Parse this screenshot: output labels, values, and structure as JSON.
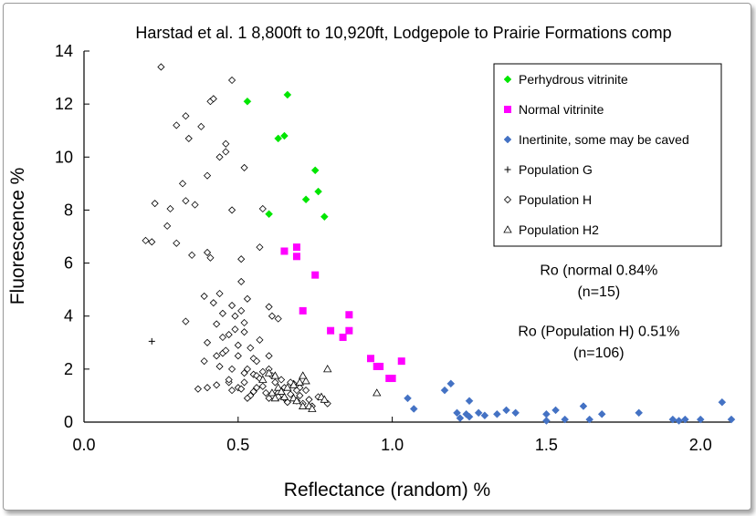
{
  "chart_data": {
    "type": "scatter",
    "title": "Harstad et al. 1 8,800ft to 10,920ft, Lodgepole to Prairie  Formations comp",
    "xlabel": "Reflectance (random) %",
    "ylabel": "Fluorescence %",
    "xlim": [
      0,
      2.1
    ],
    "ylim": [
      0,
      14
    ],
    "x_ticks": [
      "0.0",
      "0.5",
      "1.0",
      "1.5",
      "2.0"
    ],
    "x_tick_values": [
      0,
      0.5,
      1.0,
      1.5,
      2.0
    ],
    "y_ticks": [
      "0",
      "2",
      "4",
      "6",
      "8",
      "10",
      "12",
      "14"
    ],
    "y_tick_values": [
      0,
      2,
      4,
      6,
      8,
      10,
      12,
      14
    ],
    "grid": false,
    "legend_position": "top-right",
    "series": [
      {
        "name": "Perhydrous vitrinite",
        "marker": "diamond-filled",
        "color": "#00e600",
        "points": [
          [
            0.53,
            12.1
          ],
          [
            0.66,
            12.35
          ],
          [
            0.63,
            10.7
          ],
          [
            0.65,
            10.8
          ],
          [
            0.75,
            9.5
          ],
          [
            0.76,
            8.7
          ],
          [
            0.72,
            8.4
          ],
          [
            0.6,
            7.85
          ],
          [
            0.78,
            7.75
          ]
        ]
      },
      {
        "name": "Normal vitrinite",
        "marker": "square-filled",
        "color": "#ff00ff",
        "points": [
          [
            0.69,
            6.6
          ],
          [
            0.65,
            6.45
          ],
          [
            0.69,
            6.25
          ],
          [
            0.75,
            5.55
          ],
          [
            0.71,
            4.2
          ],
          [
            0.86,
            4.05
          ],
          [
            0.86,
            3.45
          ],
          [
            0.8,
            3.45
          ],
          [
            0.84,
            3.2
          ],
          [
            0.93,
            2.4
          ],
          [
            1.03,
            2.3
          ],
          [
            0.95,
            2.1
          ],
          [
            0.99,
            1.65
          ],
          [
            1.0,
            1.65
          ],
          [
            0.96,
            2.1
          ]
        ]
      },
      {
        "name": "Inertinite, some may be caved",
        "marker": "diamond-filled",
        "color": "#4472c4",
        "points": [
          [
            1.05,
            0.9
          ],
          [
            1.07,
            0.5
          ],
          [
            1.17,
            1.2
          ],
          [
            1.19,
            1.45
          ],
          [
            1.21,
            0.35
          ],
          [
            1.22,
            0.15
          ],
          [
            1.24,
            0.3
          ],
          [
            1.25,
            0.8
          ],
          [
            1.25,
            0.2
          ],
          [
            1.28,
            0.35
          ],
          [
            1.3,
            0.25
          ],
          [
            1.34,
            0.3
          ],
          [
            1.37,
            0.45
          ],
          [
            1.4,
            0.35
          ],
          [
            1.5,
            0.05
          ],
          [
            1.5,
            0.3
          ],
          [
            1.53,
            0.45
          ],
          [
            1.56,
            0.1
          ],
          [
            1.62,
            0.6
          ],
          [
            1.64,
            0.1
          ],
          [
            1.68,
            0.3
          ],
          [
            1.8,
            0.35
          ],
          [
            1.91,
            0.1
          ],
          [
            1.93,
            0.05
          ],
          [
            1.95,
            0.1
          ],
          [
            2.0,
            0.1
          ],
          [
            2.07,
            0.75
          ],
          [
            2.1,
            0.1
          ]
        ]
      },
      {
        "name": "Population G",
        "marker": "plus",
        "color": "#000000",
        "points": [
          [
            0.22,
            3.05
          ]
        ]
      },
      {
        "name": "Population H",
        "marker": "diamond-open",
        "color": "#000000",
        "points": [
          [
            0.25,
            13.4
          ],
          [
            0.48,
            12.9
          ],
          [
            0.41,
            12.1
          ],
          [
            0.42,
            12.2
          ],
          [
            0.33,
            11.55
          ],
          [
            0.3,
            11.2
          ],
          [
            0.38,
            11.15
          ],
          [
            0.34,
            10.7
          ],
          [
            0.46,
            10.5
          ],
          [
            0.46,
            10.2
          ],
          [
            0.44,
            10.0
          ],
          [
            0.52,
            9.6
          ],
          [
            0.4,
            9.3
          ],
          [
            0.32,
            9.0
          ],
          [
            0.28,
            8.05
          ],
          [
            0.33,
            8.35
          ],
          [
            0.36,
            8.2
          ],
          [
            0.23,
            8.25
          ],
          [
            0.48,
            8.0
          ],
          [
            0.58,
            8.05
          ],
          [
            0.27,
            7.4
          ],
          [
            0.2,
            6.85
          ],
          [
            0.22,
            6.8
          ],
          [
            0.3,
            6.75
          ],
          [
            0.35,
            6.3
          ],
          [
            0.4,
            6.4
          ],
          [
            0.41,
            6.2
          ],
          [
            0.51,
            6.15
          ],
          [
            0.57,
            6.6
          ],
          [
            0.51,
            5.3
          ],
          [
            0.44,
            4.85
          ],
          [
            0.39,
            4.75
          ],
          [
            0.42,
            4.5
          ],
          [
            0.48,
            4.4
          ],
          [
            0.51,
            4.2
          ],
          [
            0.53,
            4.65
          ],
          [
            0.45,
            4.1
          ],
          [
            0.49,
            4.0
          ],
          [
            0.6,
            4.35
          ],
          [
            0.61,
            4.0
          ],
          [
            0.63,
            3.9
          ],
          [
            0.33,
            3.8
          ],
          [
            0.43,
            3.7
          ],
          [
            0.49,
            3.5
          ],
          [
            0.52,
            3.75
          ],
          [
            0.47,
            3.3
          ],
          [
            0.52,
            3.4
          ],
          [
            0.45,
            3.2
          ],
          [
            0.4,
            3.0
          ],
          [
            0.5,
            2.9
          ],
          [
            0.57,
            3.1
          ],
          [
            0.6,
            2.5
          ],
          [
            0.55,
            2.4
          ],
          [
            0.45,
            2.6
          ],
          [
            0.43,
            2.5
          ],
          [
            0.5,
            2.5
          ],
          [
            0.56,
            2.3
          ],
          [
            0.39,
            2.3
          ],
          [
            0.44,
            2.1
          ],
          [
            0.48,
            2.0
          ],
          [
            0.53,
            2.0
          ],
          [
            0.58,
            1.9
          ],
          [
            0.52,
            1.85
          ],
          [
            0.55,
            1.8
          ],
          [
            0.56,
            1.75
          ],
          [
            0.6,
            2.0
          ],
          [
            0.43,
            1.4
          ],
          [
            0.47,
            1.5
          ],
          [
            0.52,
            1.5
          ],
          [
            0.5,
            1.3
          ],
          [
            0.48,
            1.2
          ],
          [
            0.56,
            1.3
          ],
          [
            0.58,
            1.35
          ],
          [
            0.62,
            1.5
          ],
          [
            0.65,
            1.3
          ],
          [
            0.68,
            1.45
          ],
          [
            0.7,
            1.3
          ],
          [
            0.72,
            1.2
          ],
          [
            0.67,
            1.05
          ],
          [
            0.63,
            1.1
          ],
          [
            0.6,
            0.9
          ],
          [
            0.54,
            1.0
          ],
          [
            0.65,
            0.9
          ],
          [
            0.69,
            0.8
          ],
          [
            0.71,
            0.7
          ],
          [
            0.74,
            0.6
          ],
          [
            0.76,
            0.95
          ],
          [
            0.79,
            0.7
          ],
          [
            0.37,
            1.25
          ],
          [
            0.4,
            1.3
          ],
          [
            0.46,
            2.7
          ],
          [
            0.54,
            2.8
          ],
          [
            0.53,
            0.9
          ],
          [
            0.57,
            1.65
          ],
          [
            0.61,
            1.75
          ],
          [
            0.64,
            1.6
          ],
          [
            0.67,
            1.5
          ],
          [
            0.69,
            1.2
          ],
          [
            0.7,
            1.0
          ],
          [
            0.73,
            0.85
          ],
          [
            0.66,
            0.75
          ],
          [
            0.63,
            0.95
          ],
          [
            0.59,
            1.1
          ],
          [
            0.55,
            1.15
          ],
          [
            0.51,
            1.25
          ],
          [
            0.47,
            1.6
          ]
        ]
      },
      {
        "name": "Population H2",
        "marker": "triangle-open",
        "color": "#000000",
        "points": [
          [
            0.6,
            1.85
          ],
          [
            0.62,
            1.75
          ],
          [
            0.58,
            1.6
          ],
          [
            0.63,
            1.3
          ],
          [
            0.61,
            1.1
          ],
          [
            0.66,
            1.3
          ],
          [
            0.68,
            1.4
          ],
          [
            0.7,
            1.5
          ],
          [
            0.72,
            1.55
          ],
          [
            0.71,
            1.75
          ],
          [
            0.68,
            0.9
          ],
          [
            0.69,
            0.8
          ],
          [
            0.71,
            0.6
          ],
          [
            0.73,
            0.6
          ],
          [
            0.74,
            0.5
          ],
          [
            0.65,
            0.95
          ],
          [
            0.62,
            0.9
          ],
          [
            0.77,
            0.95
          ],
          [
            0.78,
            0.85
          ],
          [
            0.79,
            2.0
          ],
          [
            0.95,
            1.1
          ],
          [
            0.64,
            1.15
          ]
        ]
      }
    ],
    "annotations": [
      {
        "text": "Ro (normal  0.84%",
        "x": 1.67,
        "y": 5.55
      },
      {
        "text": "(n=15)",
        "x": 1.67,
        "y": 4.75
      },
      {
        "text": "Ro (Population H) 0.51%",
        "x": 1.67,
        "y": 3.25
      },
      {
        "text": "(n=106)",
        "x": 1.67,
        "y": 2.45
      }
    ]
  }
}
